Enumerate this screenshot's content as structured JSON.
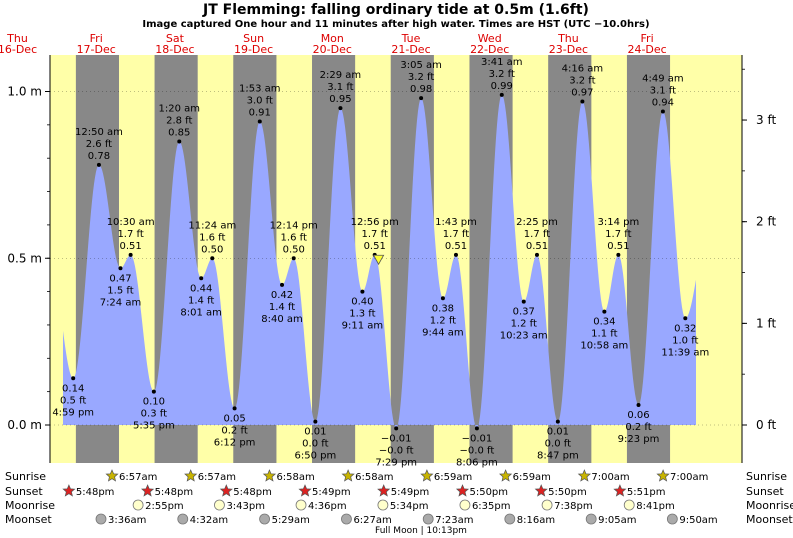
{
  "title": "JT Flemming: falling  ordinary tide at 0.5m (1.6ft)",
  "subtitle": "Image captured One hour and 11 minutes after high water. Times are HST (UTC −10.0hrs)",
  "colors": {
    "day": "#ffffa8",
    "night": "#888888",
    "tide": "#99a8ff",
    "day_label": "#dd0000",
    "text": "#000000",
    "sun_fill": "#c8b400",
    "sunset_fill": "#dd2222",
    "moonrise_fill": "#ffffcc",
    "moonset_fill": "#aaaaaa"
  },
  "chart_data": {
    "type": "area",
    "x_unit": "days from Thu 16-Dec 00:00 (HST)",
    "days": [
      {
        "weekday": "Thu",
        "date": "16-Dec"
      },
      {
        "weekday": "Fri",
        "date": "17-Dec"
      },
      {
        "weekday": "Sat",
        "date": "18-Dec"
      },
      {
        "weekday": "Sun",
        "date": "19-Dec"
      },
      {
        "weekday": "Mon",
        "date": "20-Dec"
      },
      {
        "weekday": "Tue",
        "date": "21-Dec"
      },
      {
        "weekday": "Wed",
        "date": "22-Dec"
      },
      {
        "weekday": "Thu",
        "date": "23-Dec"
      },
      {
        "weekday": "Fri",
        "date": "24-Dec"
      }
    ],
    "y_left_ticks": [
      "0.0 m",
      "0.5 m",
      "1.0 m"
    ],
    "y_right_ticks": [
      "0 ft",
      "1 ft",
      "2 ft",
      "3 ft"
    ],
    "ylim_m": [
      -0.08,
      1.1
    ],
    "extremes": [
      {
        "day": 0,
        "time": "4:59 pm",
        "m": 0.14,
        "ft": 0.5,
        "type": "low"
      },
      {
        "day": 1,
        "time": "12:50 am",
        "m": 0.78,
        "ft": 2.6,
        "type": "high"
      },
      {
        "day": 1,
        "time": "7:24 am",
        "m": 0.47,
        "ft": 1.5,
        "type": "low"
      },
      {
        "day": 1,
        "time": "10:30 am",
        "m": 0.51,
        "ft": 1.7,
        "type": "high"
      },
      {
        "day": 1,
        "time": "5:35 pm",
        "m": 0.1,
        "ft": 0.3,
        "type": "low"
      },
      {
        "day": 2,
        "time": "1:20 am",
        "m": 0.85,
        "ft": 2.8,
        "type": "high"
      },
      {
        "day": 2,
        "time": "8:01 am",
        "m": 0.44,
        "ft": 1.4,
        "type": "low"
      },
      {
        "day": 2,
        "time": "11:24 am",
        "m": 0.5,
        "ft": 1.6,
        "type": "high"
      },
      {
        "day": 2,
        "time": "6:12 pm",
        "m": 0.05,
        "ft": 0.2,
        "type": "low"
      },
      {
        "day": 3,
        "time": "1:53 am",
        "m": 0.91,
        "ft": 3.0,
        "type": "high"
      },
      {
        "day": 3,
        "time": "8:40 am",
        "m": 0.42,
        "ft": 1.4,
        "type": "low"
      },
      {
        "day": 3,
        "time": "12:14 pm",
        "m": 0.5,
        "ft": 1.6,
        "type": "high"
      },
      {
        "day": 3,
        "time": "6:50 pm",
        "m": 0.01,
        "ft": 0.0,
        "type": "low"
      },
      {
        "day": 4,
        "time": "2:29 am",
        "m": 0.95,
        "ft": 3.1,
        "type": "high"
      },
      {
        "day": 4,
        "time": "9:11 am",
        "m": 0.4,
        "ft": 1.3,
        "type": "low"
      },
      {
        "day": 4,
        "time": "12:56 pm",
        "m": 0.51,
        "ft": 1.7,
        "type": "high"
      },
      {
        "day": 4,
        "time": "7:29 pm",
        "m": -0.01,
        "ft": -0.0,
        "type": "low"
      },
      {
        "day": 5,
        "time": "3:05 am",
        "m": 0.98,
        "ft": 3.2,
        "type": "high"
      },
      {
        "day": 5,
        "time": "9:44 am",
        "m": 0.38,
        "ft": 1.2,
        "type": "low"
      },
      {
        "day": 5,
        "time": "1:43 pm",
        "m": 0.51,
        "ft": 1.7,
        "type": "high"
      },
      {
        "day": 5,
        "time": "8:06 pm",
        "m": -0.01,
        "ft": -0.0,
        "type": "low"
      },
      {
        "day": 6,
        "time": "3:41 am",
        "m": 0.99,
        "ft": 3.2,
        "type": "high"
      },
      {
        "day": 6,
        "time": "10:23 am",
        "m": 0.37,
        "ft": 1.2,
        "type": "low"
      },
      {
        "day": 6,
        "time": "2:25 pm",
        "m": 0.51,
        "ft": 1.7,
        "type": "high"
      },
      {
        "day": 6,
        "time": "8:47 pm",
        "m": 0.01,
        "ft": 0.0,
        "type": "low"
      },
      {
        "day": 7,
        "time": "4:16 am",
        "m": 0.97,
        "ft": 3.2,
        "type": "high"
      },
      {
        "day": 7,
        "time": "10:58 am",
        "m": 0.34,
        "ft": 1.1,
        "type": "low"
      },
      {
        "day": 7,
        "time": "3:14 pm",
        "m": 0.51,
        "ft": 1.7,
        "type": "high"
      },
      {
        "day": 7,
        "time": "9:23 pm",
        "m": 0.06,
        "ft": 0.2,
        "type": "low"
      },
      {
        "day": 8,
        "time": "4:49 am",
        "m": 0.94,
        "ft": 3.1,
        "type": "high"
      },
      {
        "day": 8,
        "time": "11:39 am",
        "m": 0.32,
        "ft": 1.0,
        "type": "low"
      }
    ],
    "current_marker": {
      "day": 4,
      "time": "2:07 pm",
      "m": 0.5
    }
  },
  "astro": {
    "row_labels": [
      "Sunrise",
      "Sunset",
      "Moonrise",
      "Moonset"
    ],
    "sunrise": [
      {
        "day": 1,
        "time": "6:57am"
      },
      {
        "day": 2,
        "time": "6:57am"
      },
      {
        "day": 3,
        "time": "6:58am"
      },
      {
        "day": 4,
        "time": "6:58am"
      },
      {
        "day": 5,
        "time": "6:59am"
      },
      {
        "day": 6,
        "time": "6:59am"
      },
      {
        "day": 7,
        "time": "7:00am"
      },
      {
        "day": 8,
        "time": "7:00am"
      }
    ],
    "sunset": [
      {
        "day": 0,
        "time": "5:48pm"
      },
      {
        "day": 1,
        "time": "5:48pm"
      },
      {
        "day": 2,
        "time": "5:48pm"
      },
      {
        "day": 3,
        "time": "5:49pm"
      },
      {
        "day": 4,
        "time": "5:49pm"
      },
      {
        "day": 5,
        "time": "5:50pm"
      },
      {
        "day": 6,
        "time": "5:50pm"
      },
      {
        "day": 7,
        "time": "5:51pm"
      }
    ],
    "moonrise": [
      {
        "day": 1,
        "time": "2:55pm"
      },
      {
        "day": 2,
        "time": "3:43pm"
      },
      {
        "day": 3,
        "time": "4:36pm"
      },
      {
        "day": 4,
        "time": "5:34pm"
      },
      {
        "day": 5,
        "time": "6:35pm"
      },
      {
        "day": 6,
        "time": "7:38pm"
      },
      {
        "day": 7,
        "time": "8:41pm"
      }
    ],
    "moonset": [
      {
        "day": 1,
        "time": "3:36am"
      },
      {
        "day": 2,
        "time": "4:32am"
      },
      {
        "day": 3,
        "time": "5:29am"
      },
      {
        "day": 4,
        "time": "6:27am"
      },
      {
        "day": 5,
        "time": "7:23am"
      },
      {
        "day": 6,
        "time": "8:16am"
      },
      {
        "day": 7,
        "time": "9:05am"
      },
      {
        "day": 8,
        "time": "9:50am"
      }
    ],
    "moon_phase": "Full Moon | 10:13pm"
  }
}
